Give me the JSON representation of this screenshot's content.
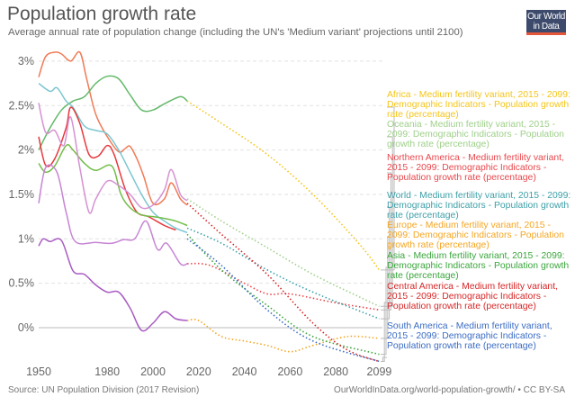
{
  "header": {
    "title": "Population growth rate",
    "subtitle": "Average annual rate of population change (including the UN's 'Medium variant' projections until 2100)",
    "logo_text": "Our World in Data"
  },
  "footer": {
    "source": "Source: UN Population Division (2017 Revision)",
    "url": "OurWorldInData.org/world-population-growth/ • CC BY-SA"
  },
  "chart_data": {
    "type": "line",
    "title": "Population growth rate",
    "xlim": [
      1950,
      2099
    ],
    "ylim": [
      -0.45,
      3.1
    ],
    "x_ticks": [
      "1950",
      "1980",
      "2000",
      "2020",
      "2040",
      "2060",
      "2080",
      "2099"
    ],
    "y_ticks": [
      {
        "v": 0,
        "label": "0%"
      },
      {
        "v": 0.5,
        "label": "0.5%"
      },
      {
        "v": 1,
        "label": "1%"
      },
      {
        "v": 1.5,
        "label": "1.5%"
      },
      {
        "v": 2,
        "label": "2%"
      },
      {
        "v": 2.5,
        "label": "2.5%"
      },
      {
        "v": 3,
        "label": "3%"
      }
    ],
    "grid": true,
    "legend_placement": "right",
    "historical": [
      {
        "color": "#f07a55",
        "x": [
          1950,
          1953,
          1957,
          1960,
          1964,
          1968,
          1971,
          1975,
          1980,
          1985,
          1988,
          1990,
          1993,
          1996,
          2000,
          2005,
          2008,
          2012,
          2015
        ],
        "y": [
          2.82,
          3.05,
          3.1,
          3.08,
          3.0,
          3.1,
          2.8,
          2.4,
          2.15,
          1.98,
          2.02,
          2.04,
          1.9,
          1.7,
          1.4,
          1.45,
          1.63,
          1.45,
          1.38
        ]
      },
      {
        "color": "#64b96a",
        "x": [
          1950,
          1955,
          1960,
          1965,
          1970,
          1975,
          1980,
          1985,
          1990,
          1995,
          2000,
          2005,
          2012,
          2015
        ],
        "y": [
          2.0,
          2.25,
          2.45,
          2.55,
          2.6,
          2.75,
          2.83,
          2.8,
          2.62,
          2.45,
          2.45,
          2.52,
          2.6,
          2.55
        ]
      },
      {
        "color": "#7cc6d0",
        "x": [
          1950,
          1955,
          1958,
          1962,
          1965,
          1970,
          1975,
          1980,
          1985,
          1990,
          1995,
          2000,
          2005,
          2010,
          2015
        ],
        "y": [
          2.75,
          2.66,
          2.7,
          2.55,
          2.48,
          2.27,
          2.22,
          2.18,
          2.0,
          1.75,
          1.5,
          1.3,
          1.2,
          1.12,
          1.07
        ]
      },
      {
        "color": "#e8383c",
        "x": [
          1950,
          1953,
          1957,
          1962,
          1964,
          1968,
          1972,
          1976,
          1980,
          1983,
          1988,
          1993,
          1998,
          2005,
          2010
        ],
        "y": [
          2.15,
          1.83,
          1.9,
          2.25,
          2.48,
          2.3,
          1.95,
          1.93,
          2.05,
          1.95,
          1.55,
          1.3,
          1.25,
          1.15,
          1.1
        ]
      },
      {
        "color": "#72bd48",
        "x": [
          1950,
          1953,
          1957,
          1962,
          1965,
          1970,
          1975,
          1982,
          1986,
          1990,
          1995,
          2000,
          2005,
          2010,
          2015
        ],
        "y": [
          1.85,
          1.75,
          1.82,
          2.05,
          2.0,
          1.85,
          1.77,
          1.82,
          1.5,
          1.35,
          1.27,
          1.25,
          1.23,
          1.2,
          1.15
        ]
      },
      {
        "color": "#d691d2",
        "x": [
          1950,
          1953,
          1957,
          1961,
          1964,
          1968,
          1972,
          1975,
          1980,
          1985,
          1990,
          1995,
          2000,
          2005,
          2008,
          2012,
          2015
        ],
        "y": [
          2.53,
          2.2,
          2.22,
          2.05,
          2.37,
          1.8,
          1.3,
          1.45,
          1.65,
          1.6,
          1.5,
          1.35,
          1.38,
          1.55,
          1.78,
          1.5,
          1.43
        ]
      },
      {
        "color": "#c685d4",
        "x": [
          1950,
          1953,
          1958,
          1962,
          1966,
          1975,
          1982,
          1987,
          1992,
          1997,
          2002,
          2006,
          2012,
          2015
        ],
        "y": [
          1.4,
          1.8,
          1.75,
          1.3,
          0.97,
          0.96,
          0.95,
          0.99,
          1.0,
          1.2,
          0.88,
          0.95,
          0.72,
          0.72
        ]
      },
      {
        "color": "#a85cc2",
        "x": [
          1950,
          1952,
          1955,
          1960,
          1965,
          1970,
          1975,
          1980,
          1985,
          1990,
          1995,
          2000,
          2005,
          2010,
          2015
        ],
        "y": [
          0.92,
          1.0,
          0.97,
          0.98,
          0.64,
          0.6,
          0.48,
          0.4,
          0.4,
          0.22,
          -0.03,
          0.05,
          0.18,
          0.1,
          0.08
        ]
      }
    ],
    "series": [
      {
        "name": "Africa - Medium fertility variant, 2015 - 2099: Demographic Indicators - Population growth rate (percentage)",
        "color": "#f5c518",
        "x": [
          2015,
          2030,
          2050,
          2070,
          2090,
          2099
        ],
        "y": [
          2.55,
          2.3,
          1.95,
          1.5,
          0.95,
          0.65
        ]
      },
      {
        "name": "Oceania - Medium fertility variant, 2015 - 2099: Demographic Indicators - Population growth rate (percentage)",
        "color": "#9fd08a",
        "x": [
          2015,
          2030,
          2050,
          2070,
          2090,
          2099
        ],
        "y": [
          1.45,
          1.2,
          0.9,
          0.6,
          0.35,
          0.24
        ]
      },
      {
        "name": "Northern America - Medium fertility variant, 2015 - 2099: Demographic Indicators - Population growth rate (percentage)",
        "color": "#e8474c",
        "x": [
          2015,
          2025,
          2040,
          2050,
          2060,
          2080,
          2099
        ],
        "y": [
          0.72,
          0.7,
          0.5,
          0.38,
          0.38,
          0.28,
          0.2
        ]
      },
      {
        "name": "World - Medium fertility variant, 2015 - 2099: Demographic Indicators - Population growth rate (percentage)",
        "color": "#3ea0a8",
        "x": [
          2015,
          2030,
          2050,
          2070,
          2099
        ],
        "y": [
          1.12,
          0.95,
          0.65,
          0.4,
          0.1
        ]
      },
      {
        "name": "Europe - Medium fertility variant, 2015 - 2099: Demographic Indicators - Population growth rate (percentage)",
        "color": "#f5a623",
        "x": [
          2015,
          2020,
          2030,
          2040,
          2050,
          2060,
          2070,
          2085,
          2099
        ],
        "y": [
          0.08,
          0.08,
          -0.1,
          -0.15,
          -0.2,
          -0.27,
          -0.2,
          -0.1,
          -0.12
        ]
      },
      {
        "name": "Asia - Medium fertility variant, 2015 - 2099: Demographic Indicators - Population growth rate (percentage)",
        "color": "#3aa63c",
        "x": [
          2015,
          2030,
          2050,
          2070,
          2099
        ],
        "y": [
          1.05,
          0.65,
          0.25,
          -0.1,
          -0.3
        ]
      },
      {
        "name": "Central America - Medium fertility variant, 2015 - 2099: Demographic Indicators - Population growth rate (percentage)",
        "color": "#d62728",
        "x": [
          2015,
          2030,
          2050,
          2070,
          2085,
          2099
        ],
        "y": [
          1.4,
          1.05,
          0.6,
          0.05,
          -0.25,
          -0.38
        ]
      },
      {
        "name": "South America - Medium fertility variant, 2015 - 2099: Demographic Indicators - Population growth rate (percentage)",
        "color": "#3b6cc4",
        "x": [
          2015,
          2030,
          2050,
          2070,
          2099
        ],
        "y": [
          1.0,
          0.7,
          0.2,
          -0.15,
          -0.38
        ]
      }
    ]
  }
}
